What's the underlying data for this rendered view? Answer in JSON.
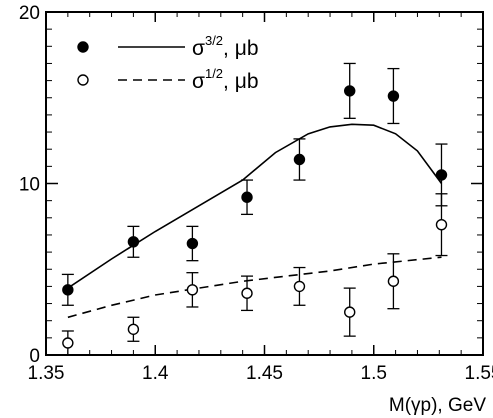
{
  "chart_data": {
    "type": "scatter",
    "title": "",
    "xlabel": "M(γp), GeV",
    "ylabel": "",
    "xlim": [
      1.35,
      1.55
    ],
    "ylim": [
      0,
      20
    ],
    "x_ticks": [
      1.35,
      1.4,
      1.45,
      1.5,
      1.55
    ],
    "x_tick_labels": [
      "1.35",
      "1.4",
      "1.45",
      "1.5",
      "1.55"
    ],
    "y_ticks": [
      0,
      10,
      20
    ],
    "y_tick_labels": [
      "0",
      "10",
      "20"
    ],
    "legend_position": "top-left",
    "grid": false,
    "series": [
      {
        "name": "σ3/2, μb",
        "marker": "filled-circle",
        "x": [
          1.36,
          1.39,
          1.417,
          1.442,
          1.466,
          1.489,
          1.509,
          1.531
        ],
        "y": [
          3.8,
          6.6,
          6.5,
          9.2,
          11.4,
          15.4,
          15.1,
          10.5
        ],
        "err": [
          0.9,
          0.9,
          1.0,
          1.0,
          1.2,
          1.6,
          1.6,
          1.8
        ]
      },
      {
        "name": "σ1/2, μb",
        "marker": "open-circle",
        "x": [
          1.36,
          1.39,
          1.417,
          1.442,
          1.466,
          1.489,
          1.509,
          1.531
        ],
        "y": [
          0.7,
          1.5,
          3.8,
          3.6,
          4.0,
          2.5,
          4.3,
          7.6
        ],
        "err": [
          0.7,
          0.7,
          1.0,
          1.0,
          1.1,
          1.4,
          1.6,
          1.8
        ]
      }
    ],
    "curves": [
      {
        "series": "σ3/2, μb",
        "style": "solid",
        "x": [
          1.36,
          1.38,
          1.4,
          1.42,
          1.44,
          1.455,
          1.47,
          1.48,
          1.49,
          1.5,
          1.51,
          1.52,
          1.531
        ],
        "y": [
          3.9,
          5.6,
          7.2,
          8.7,
          10.2,
          11.8,
          12.9,
          13.3,
          13.45,
          13.4,
          12.9,
          11.9,
          10.0
        ]
      },
      {
        "series": "σ1/2, μb",
        "style": "dashed",
        "x": [
          1.36,
          1.38,
          1.4,
          1.42,
          1.44,
          1.46,
          1.48,
          1.5,
          1.531
        ],
        "y": [
          2.2,
          2.9,
          3.5,
          3.9,
          4.3,
          4.6,
          4.9,
          5.3,
          5.7
        ]
      }
    ],
    "legend": [
      {
        "marker": "filled-circle",
        "line": "solid",
        "label": "σ",
        "sup": "3/2",
        "suffix": ", μb"
      },
      {
        "marker": "open-circle",
        "line": "dashed",
        "label": "σ",
        "sup": "1/2",
        "suffix": ", μb"
      }
    ]
  }
}
